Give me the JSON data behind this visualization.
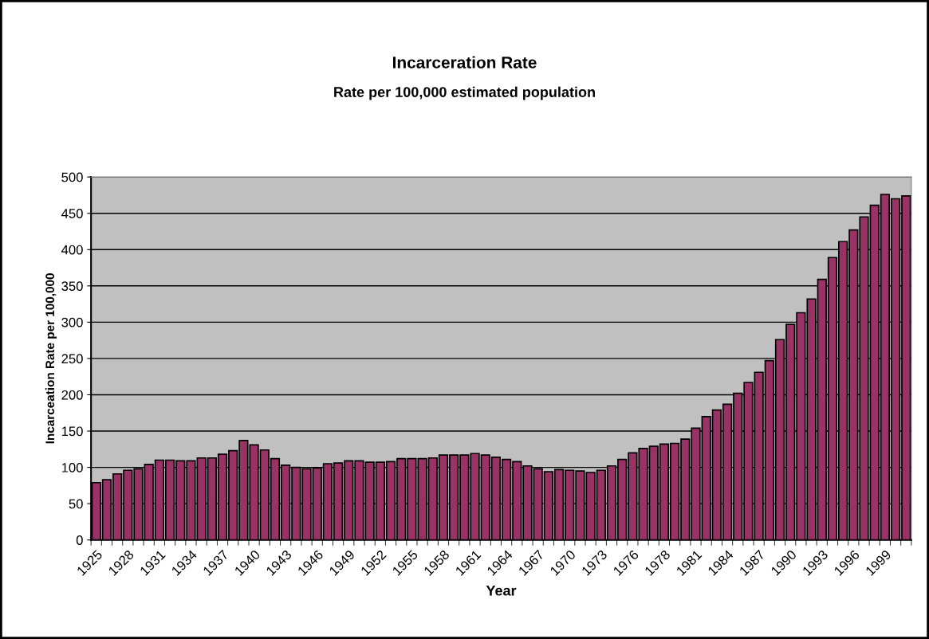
{
  "chart_data": {
    "type": "bar",
    "title": "Incarceration Rate",
    "subtitle": "Rate per 100,000 estimated population",
    "xlabel": "Year",
    "ylabel": "Incarceation Rate per 100,000",
    "categories": [
      "1925",
      null,
      null,
      "1928",
      null,
      null,
      "1931",
      null,
      null,
      "1934",
      null,
      null,
      "1937",
      null,
      null,
      "1940",
      null,
      null,
      "1943",
      null,
      null,
      "1946",
      null,
      null,
      "1949",
      null,
      null,
      "1952",
      null,
      null,
      "1955",
      null,
      null,
      "1958",
      null,
      null,
      "1961",
      null,
      null,
      "1964",
      null,
      null,
      "1967",
      null,
      null,
      "1970",
      null,
      null,
      "1973",
      null,
      null,
      "1976",
      null,
      null,
      "1978",
      null,
      null,
      "1981",
      null,
      null,
      "1984",
      null,
      null,
      "1987",
      null,
      null,
      "1990",
      null,
      null,
      "1993",
      null,
      null,
      "1996",
      null,
      null,
      "1999",
      null,
      null
    ],
    "values": [
      79,
      83,
      91,
      96,
      98,
      104,
      110,
      110,
      109,
      109,
      113,
      113,
      118,
      123,
      137,
      131,
      124,
      112,
      103,
      100,
      98,
      99,
      105,
      106,
      109,
      109,
      107,
      107,
      108,
      112,
      112,
      112,
      113,
      117,
      117,
      117,
      119,
      117,
      114,
      111,
      108,
      102,
      98,
      94,
      97,
      96,
      95,
      93,
      96,
      102,
      111,
      120,
      126,
      129,
      132,
      133,
      139,
      154,
      170,
      179,
      187,
      202,
      217,
      231,
      247,
      276,
      297,
      313,
      332,
      359,
      389,
      411,
      427,
      445,
      461,
      476,
      470,
      474
    ],
    "color": "#993366",
    "ylim": [
      0,
      500
    ],
    "yticks": [
      0,
      50,
      100,
      150,
      200,
      250,
      300,
      350,
      400,
      450,
      500
    ],
    "grid": "y"
  }
}
